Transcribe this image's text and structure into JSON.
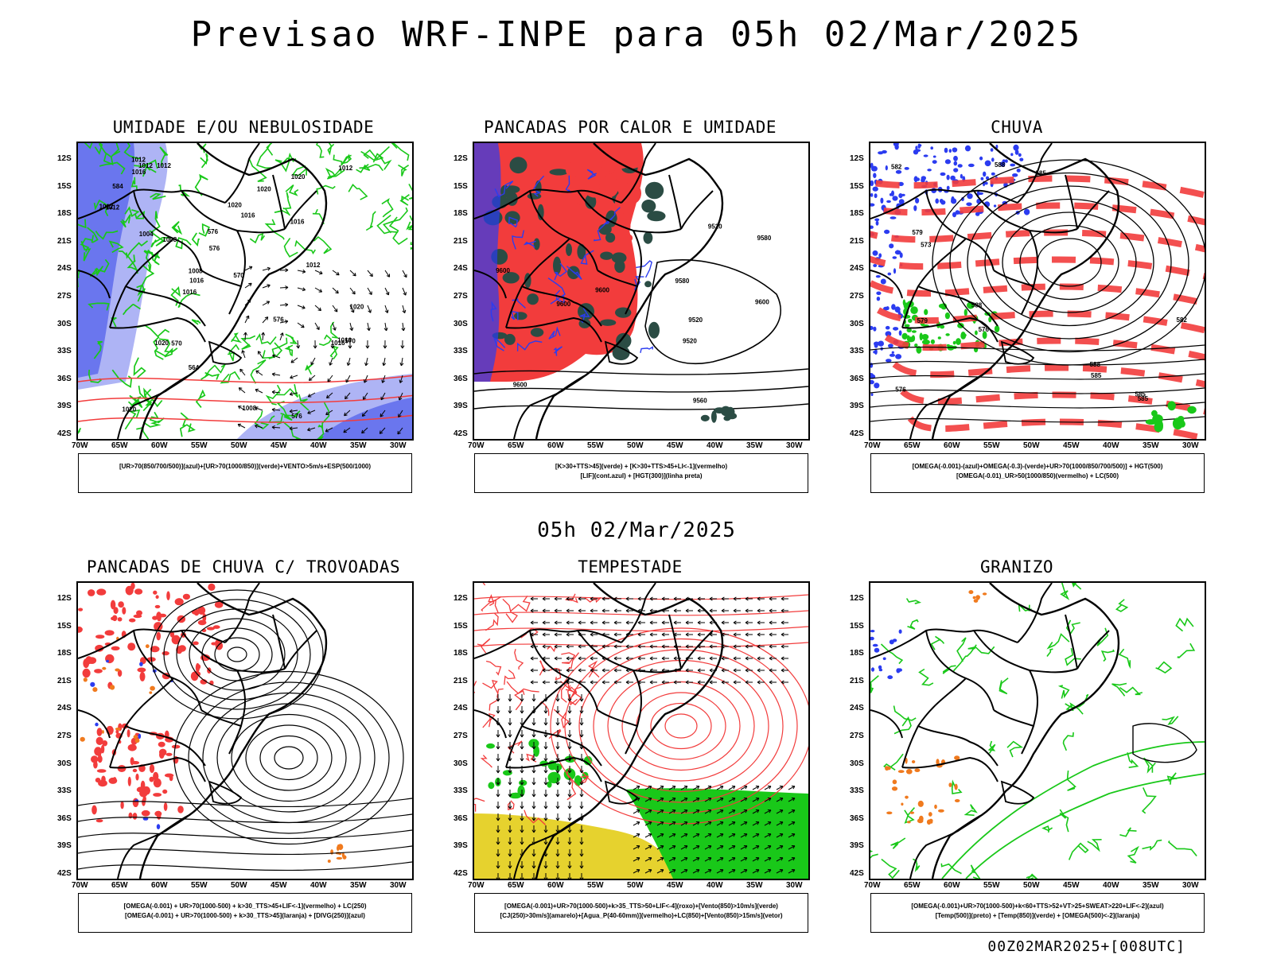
{
  "title": "Previsao WRF-INPE  para 05h 02/Mar/2025",
  "middle_title": "05h 02/Mar/2025",
  "footer": "00Z02MAR2025+[008UTC]",
  "lat_labels": [
    "12S",
    "15S",
    "18S",
    "21S",
    "24S",
    "27S",
    "30S",
    "33S",
    "36S",
    "39S",
    "42S"
  ],
  "lon_labels": [
    "70W",
    "65W",
    "60W",
    "55W",
    "50W",
    "45W",
    "40W",
    "35W",
    "30W"
  ],
  "panels": [
    {
      "title": "UMIDADE E/OU NEBULOSIDADE",
      "legend": [
        "[UR>70(850/700/500)](azul)+[UR>70(1000/850)](verde)+VENTO>5m/s+ESP(500/1000)"
      ],
      "contour_labels": [
        "1012",
        "1012",
        "1016",
        "1012",
        "1016",
        "1016",
        "1020",
        "1012",
        "1020",
        "576",
        "576",
        "1008",
        "1020",
        "576",
        "1016",
        "1012",
        "576",
        "1016",
        "1020",
        "1020",
        "1008",
        "1016",
        "1020",
        "570",
        "1012",
        "570",
        "1012",
        "1016",
        "570",
        "584",
        "1008",
        "1004",
        "564"
      ]
    },
    {
      "title": "PANCADAS POR CALOR E UMIDADE",
      "legend": [
        "[K>30+TTS>45](verde) + [K>30+TTS>45+LI<-1](vermelho)",
        "[LIF](cont.azul) + [HGT(300)](linha preta)"
      ],
      "contour_labels": [
        "9600",
        "9600",
        "9600",
        "9580",
        "9580",
        "9600",
        "9520",
        "9560",
        "9600",
        "9520",
        "9520"
      ]
    },
    {
      "title": "CHUVA",
      "legend": [
        "[OMEGA(-0.001)-(azul)+OMEGA(-0.3)-(verde)+UR>70(1000/850/700/500)] + HGT(500)",
        "[OMEGA(-0.01)_UR>50(1000/850)(vermelho) + LC(500)"
      ],
      "contour_labels": [
        "585",
        "585",
        "588",
        "588",
        "588",
        "585",
        "582",
        "579",
        "576",
        "573",
        "576",
        "579",
        "582",
        "585"
      ]
    },
    {
      "title": "PANCADAS DE CHUVA C/ TROVOADAS",
      "legend": [
        "[OMEGA(-0.001) + UR>70(1000-500) + k>30_TTS>45+LIF<-1](vermelho) + LC(250)",
        "[OMEGA(-0.001) + UR>70(1000-500) + k>30_TTS>45](laranja) + [DIVG(250)](azul)"
      ]
    },
    {
      "title": "TEMPESTADE",
      "legend": [
        "[OMEGA(-0.001)+UR>70(1000-500)+k>35_TTS>50+LIF<-4](roxo)+[Vento(850)>10m/s](verde)",
        "[CJ(250)>30m/s](amarelo)+[Agua_P(40-60mm)](vermelho)+LC(850)+[Vento(850)>15m/s](vetor)"
      ]
    },
    {
      "title": "GRANIZO",
      "legend": [
        "[OMEGA(-0.001)+UR>70(1000-500)+k<60+TTS>52+VT>25+SWEAT>220+LIF<-2](azul)",
        "[Temp(500)](preto) + [Temp(850)](verde) + [OMEGA(500)<-2](laranja)"
      ]
    }
  ],
  "colors": {
    "red": "#f23c3c",
    "green": "#19c819",
    "blue": "#2b3cf0",
    "lightblue": "#aeb4f5",
    "darkgreen": "#2b4c44",
    "yellow": "#e6d22e",
    "orange": "#f07a1e"
  }
}
